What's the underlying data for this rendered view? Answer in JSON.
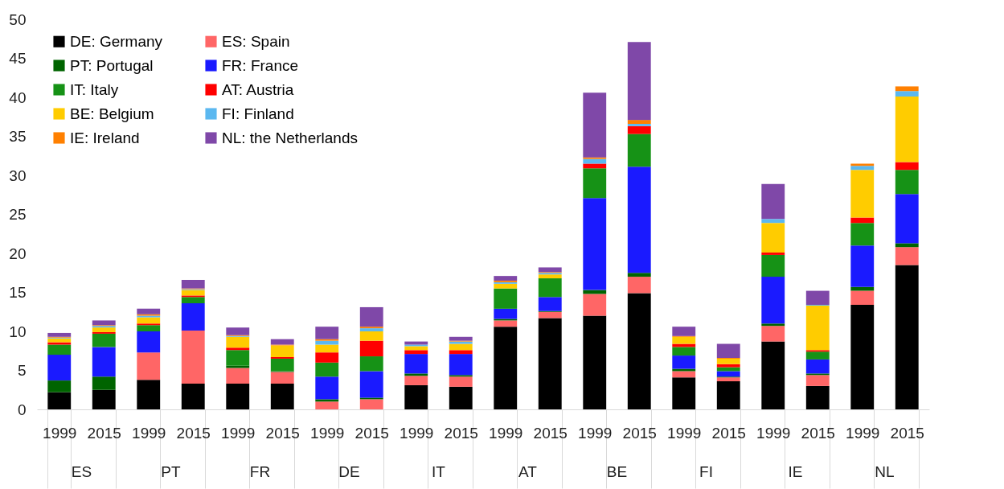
{
  "chart_data": {
    "type": "bar",
    "stacked": true,
    "legend": "top left",
    "categories": [
      "1999",
      "2015",
      "1999",
      "2015",
      "1999",
      "2015",
      "1999",
      "2015",
      "1999",
      "2015",
      "1999",
      "2015",
      "1999",
      "2015",
      "1999",
      "2015",
      "1999",
      "2015",
      "1999",
      "2015"
    ],
    "annotations": [
      "ES",
      "PT",
      "FR",
      "DE",
      "IT",
      "AT",
      "BE",
      "FI",
      "IE",
      "NL"
    ],
    "ylim": [
      0,
      50
    ],
    "yticks": [
      0,
      5,
      10,
      15,
      20,
      25,
      30,
      35,
      40,
      45,
      50
    ],
    "series": [
      {
        "name": "DE: Germany",
        "color": "#000000",
        "values": [
          2.2,
          2.5,
          3.8,
          3.3,
          3.3,
          3.3,
          0,
          0,
          3.1,
          2.9,
          10.6,
          11.7,
          12.0,
          14.9,
          4.1,
          3.6,
          8.7,
          3.0,
          13.4,
          18.5
        ]
      },
      {
        "name": "ES: Spain",
        "color": "#ff6666",
        "values": [
          0,
          0,
          3.5,
          6.8,
          2.0,
          1.5,
          1.0,
          1.3,
          1.2,
          1.3,
          0.8,
          0.8,
          2.8,
          2.1,
          0.8,
          0.5,
          2.0,
          1.4,
          1.8,
          2.3
        ]
      },
      {
        "name": "PT: Portugal",
        "color": "#006400",
        "values": [
          1.5,
          1.7,
          0,
          0,
          0.3,
          0.1,
          0.3,
          0.2,
          0.3,
          0.2,
          0.2,
          0.1,
          0.5,
          0.5,
          0.3,
          0.1,
          0.3,
          0.2,
          0.5,
          0.5
        ]
      },
      {
        "name": "FR: France",
        "color": "#1a1aff",
        "values": [
          3.3,
          3.8,
          2.7,
          3.5,
          0,
          0,
          2.9,
          3.4,
          2.5,
          2.7,
          1.3,
          1.8,
          11.8,
          13.6,
          1.7,
          0.7,
          6.0,
          1.8,
          5.3,
          6.3
        ]
      },
      {
        "name": "IT: Italy",
        "color": "#169216",
        "values": [
          1.3,
          1.7,
          0.8,
          0.8,
          2.0,
          1.6,
          1.8,
          1.9,
          0,
          0,
          2.6,
          2.4,
          3.8,
          4.2,
          1.1,
          0.5,
          2.8,
          1.0,
          2.9,
          3.1
        ]
      },
      {
        "name": "AT: Austria",
        "color": "#ff0000",
        "values": [
          0.3,
          0.2,
          0.2,
          0.2,
          0.3,
          0.2,
          1.3,
          2.0,
          0.5,
          0.5,
          0,
          0,
          0.6,
          1.0,
          0.4,
          0.4,
          0.3,
          0.2,
          0.7,
          1.0
        ]
      },
      {
        "name": "BE: Belgium",
        "color": "#ffcc00",
        "values": [
          0.5,
          0.6,
          0.8,
          0.7,
          1.4,
          1.5,
          1.0,
          1.2,
          0.5,
          0.8,
          0.6,
          0.5,
          0,
          0,
          0.9,
          0.7,
          3.8,
          5.7,
          6.1,
          8.4
        ]
      },
      {
        "name": "FI: Finland",
        "color": "#5bb8f0",
        "values": [
          0.1,
          0.2,
          0.2,
          0.1,
          0.1,
          null,
          0.5,
          0.4,
          0.2,
          0.3,
          0.2,
          0.2,
          0.6,
          0.3,
          0,
          0,
          0.5,
          0.1,
          0.5,
          0.7
        ]
      },
      {
        "name": "IE: Ireland",
        "color": "#ff8000",
        "values": [
          0.1,
          0.1,
          0.2,
          0.1,
          0.1,
          0.1,
          0.2,
          0.2,
          null,
          0.1,
          0.2,
          0.1,
          0.2,
          0.5,
          0.1,
          0.1,
          0,
          0,
          0.3,
          0.6
        ]
      },
      {
        "name": "NL: the Netherlands",
        "color": "#7f48a8",
        "values": [
          0.5,
          0.6,
          0.7,
          1.1,
          1.0,
          0.7,
          1.6,
          2.5,
          0.4,
          0.5,
          0.6,
          0.6,
          8.3,
          10.0,
          1.2,
          1.8,
          4.5,
          1.8,
          0,
          0
        ]
      }
    ]
  }
}
